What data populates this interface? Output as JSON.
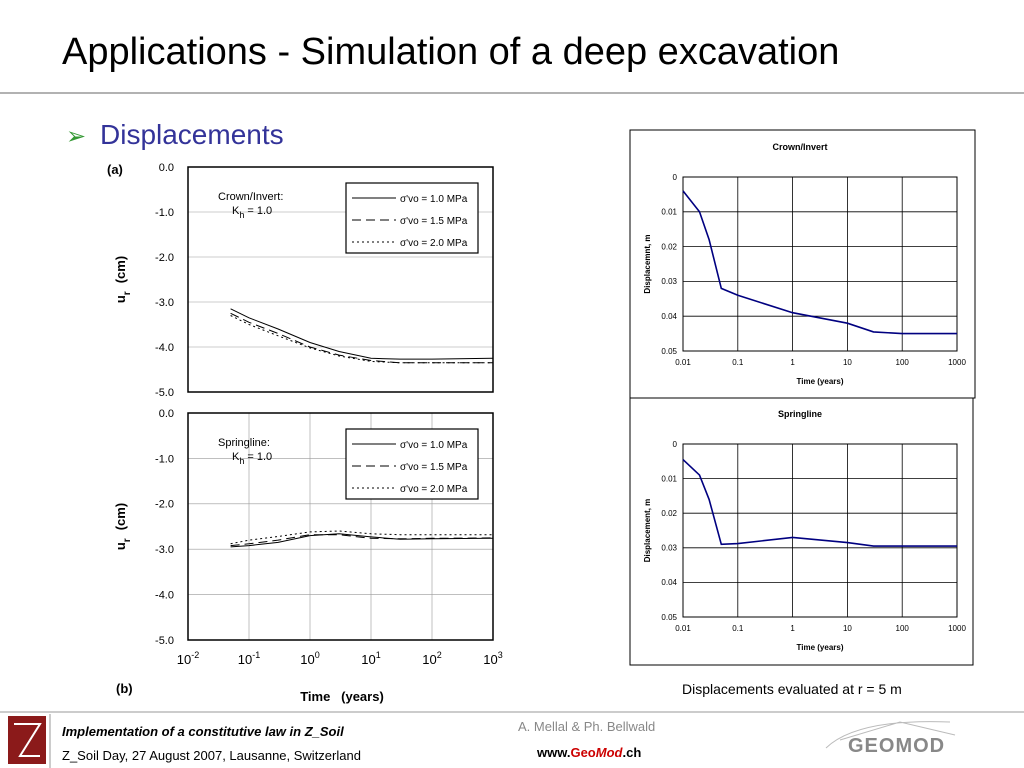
{
  "title": "Applications - Simulation of a deep excavation",
  "bullet": "Displacements",
  "caption": "Displacements evaluated at r = 5 m",
  "footer": {
    "line1": "Implementation of a constitutive law in Z_Soil",
    "line2": "Z_Soil Day, 27 August 2007, Lausanne, Switzerland",
    "authors": "A. Mellal & Ph. Bellwald",
    "website": [
      "www.",
      "Geo",
      "Mod",
      ".ch"
    ],
    "logo": "GEOMOD"
  },
  "chart_data": [
    {
      "type": "line",
      "panel": "(a)",
      "ylabel": {
        "main": "u",
        "sub": "r",
        "unit": "(cm)"
      },
      "annotation": {
        "text": "Crown/Invert:",
        "k": "K",
        "k_sub": "h",
        "k_value": "= 1.0"
      },
      "xscale": "log",
      "xlim": [
        0.01,
        1000
      ],
      "ylim": [
        -5,
        0
      ],
      "grid": true,
      "legend": "upper right",
      "yticks": [
        {
          "value": 0,
          "label": "0.0"
        },
        {
          "value": -1,
          "label": "-1.0"
        },
        {
          "value": -2,
          "label": "-2.0"
        },
        {
          "value": -3,
          "label": "-3.0"
        },
        {
          "value": -4,
          "label": "-4.0"
        },
        {
          "value": -5,
          "label": "-5.0"
        }
      ],
      "x": [
        0.05,
        0.1,
        0.3,
        1,
        3,
        10,
        30,
        100,
        1000
      ],
      "series": [
        {
          "name": "σ'vo = 1.0 MPa",
          "color": "#000000",
          "line_style": "solid",
          "values": [
            -3.15,
            -3.35,
            -3.6,
            -3.9,
            -4.1,
            -4.25,
            -4.27,
            -4.27,
            -4.25
          ]
        },
        {
          "name": "σ'vo = 1.5 MPa",
          "color": "#000000",
          "line_style": "dashed",
          "values": [
            -3.25,
            -3.45,
            -3.7,
            -4.0,
            -4.18,
            -4.3,
            -4.35,
            -4.35,
            -4.35
          ]
        },
        {
          "name": "σ'vo = 2.0 MPa",
          "color": "#000000",
          "line_style": "dotted",
          "values": [
            -3.3,
            -3.5,
            -3.75,
            -4.02,
            -4.2,
            -4.32,
            -4.35,
            -4.35,
            -4.35
          ]
        }
      ]
    },
    {
      "type": "line",
      "panel": "(b)",
      "ylabel": {
        "main": "u",
        "sub": "r",
        "unit": "(cm)"
      },
      "annotation": {
        "text": "Springline:",
        "k": "K",
        "k_sub": "h",
        "k_value": "= 1.0"
      },
      "xlabel": "Time   (years)",
      "xscale": "log",
      "xlim": [
        0.01,
        1000
      ],
      "ylim": [
        -5,
        0
      ],
      "grid": true,
      "legend": "upper right",
      "xticks": [
        {
          "value": 0.01,
          "label": "10",
          "exp": "-2"
        },
        {
          "value": 0.1,
          "label": "10",
          "exp": "-1"
        },
        {
          "value": 1,
          "label": "10",
          "exp": "0"
        },
        {
          "value": 10,
          "label": "10",
          "exp": "1"
        },
        {
          "value": 100,
          "label": "10",
          "exp": "2"
        },
        {
          "value": 1000,
          "label": "10",
          "exp": "3"
        }
      ],
      "yticks": [
        {
          "value": 0,
          "label": "0.0"
        },
        {
          "value": -1,
          "label": "-1.0"
        },
        {
          "value": -2,
          "label": "-2.0"
        },
        {
          "value": -3,
          "label": "-3.0"
        },
        {
          "value": -4,
          "label": "-4.0"
        },
        {
          "value": -5,
          "label": "-5.0"
        }
      ],
      "x": [
        0.05,
        0.1,
        0.3,
        1,
        3,
        10,
        30,
        100,
        1000
      ],
      "series": [
        {
          "name": "σ'vo = 1.0 MPa",
          "color": "#000000",
          "line_style": "solid",
          "values": [
            -2.95,
            -2.92,
            -2.85,
            -2.7,
            -2.66,
            -2.73,
            -2.78,
            -2.77,
            -2.76
          ]
        },
        {
          "name": "σ'vo = 1.5 MPa",
          "color": "#000000",
          "line_style": "dashed",
          "values": [
            -2.92,
            -2.88,
            -2.8,
            -2.68,
            -2.68,
            -2.76,
            -2.77,
            -2.76,
            -2.75
          ]
        },
        {
          "name": "σ'vo = 2.0 MPa",
          "color": "#000000",
          "line_style": "dotted",
          "values": [
            -2.88,
            -2.8,
            -2.72,
            -2.62,
            -2.6,
            -2.66,
            -2.68,
            -2.68,
            -2.68
          ]
        }
      ]
    },
    {
      "type": "line",
      "title": "Crown/Invert",
      "xlabel": "Time (years)",
      "ylabel": "Displacemnt, m",
      "xscale": "log",
      "xlim": [
        0.01,
        1000
      ],
      "ylim": [
        0.05,
        0
      ],
      "grid": true,
      "xticks": [
        0.01,
        0.1,
        1,
        10,
        100,
        1000
      ],
      "yticks": [
        0,
        0.01,
        0.02,
        0.03,
        0.04,
        0.05
      ],
      "x": [
        0.01,
        0.02,
        0.03,
        0.05,
        0.1,
        1,
        10,
        30,
        100,
        1000
      ],
      "series": [
        {
          "name": "Crown/Invert",
          "color": "#000080",
          "line_style": "solid",
          "values": [
            0.004,
            0.01,
            0.018,
            0.032,
            0.034,
            0.039,
            0.042,
            0.0445,
            0.045,
            0.045
          ]
        }
      ]
    },
    {
      "type": "line",
      "title": "Springline",
      "xlabel": "Time (years)",
      "ylabel": "Displacement, m",
      "xscale": "log",
      "xlim": [
        0.01,
        1000
      ],
      "ylim": [
        0.05,
        0
      ],
      "grid": true,
      "xticks": [
        0.01,
        0.1,
        1,
        10,
        100,
        1000
      ],
      "yticks": [
        0,
        0.01,
        0.02,
        0.03,
        0.04,
        0.05
      ],
      "x": [
        0.01,
        0.02,
        0.03,
        0.05,
        0.1,
        1,
        10,
        30,
        100,
        1000
      ],
      "series": [
        {
          "name": "Springline",
          "color": "#000080",
          "line_style": "solid",
          "values": [
            0.0045,
            0.009,
            0.016,
            0.029,
            0.0288,
            0.027,
            0.0285,
            0.0295,
            0.0295,
            0.0295
          ]
        }
      ]
    }
  ]
}
